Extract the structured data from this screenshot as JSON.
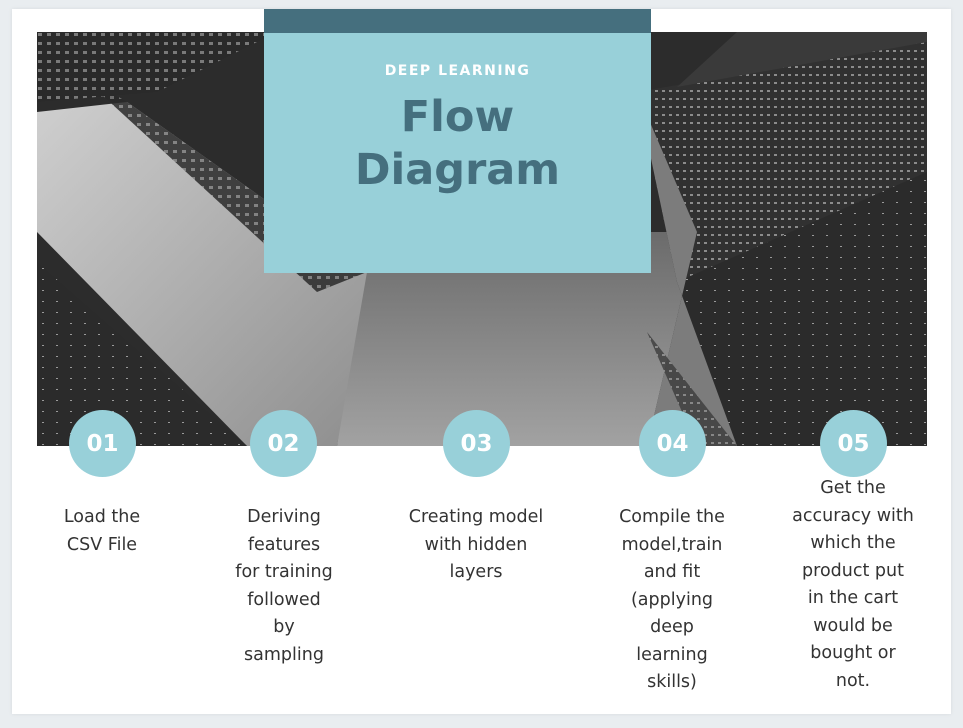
{
  "header": {
    "kicker": "DEEP LEARNING",
    "title": "Flow\nDiagram"
  },
  "colors": {
    "accent": "#98d0d9",
    "accent_dark": "#456f7e",
    "photo_dark": "#2c2c2c"
  },
  "steps": [
    {
      "number": "01",
      "text": "Load the\nCSV File"
    },
    {
      "number": "02",
      "text": "Deriving\nfeatures\nfor training\nfollowed\nby\nsampling"
    },
    {
      "number": "03",
      "text": "Creating model\nwith hidden\nlayers"
    },
    {
      "number": "04",
      "text": "Compile the\nmodel,train\nand fit\n(applying\ndeep\nlearning\nskills)"
    },
    {
      "number": "05",
      "text": "Get the\naccuracy with\nwhich the\nproduct put\nin the cart\nwould be\nbought or\nnot."
    }
  ]
}
